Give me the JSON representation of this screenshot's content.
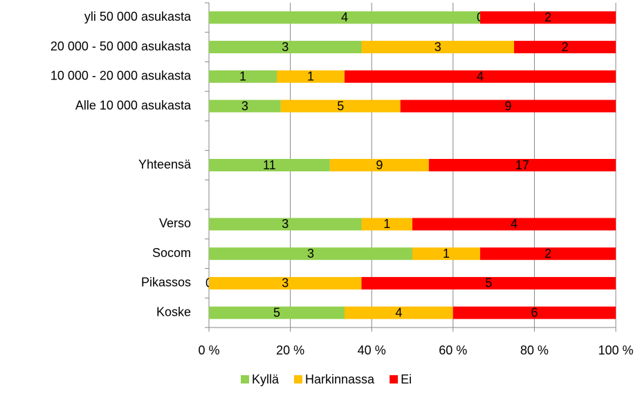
{
  "chart_data": {
    "type": "bar",
    "orientation": "horizontal",
    "stacked": "percent",
    "categories": [
      "yli 50 000 asukasta",
      "20 000 - 50 000 asukasta",
      "10 000 - 20 000 asukasta",
      "Alle 10 000 asukasta",
      null,
      "Yhteensä",
      null,
      "Verso",
      "Socom",
      "Pikassos",
      "Koske"
    ],
    "series": [
      {
        "name": "Kyllä",
        "color": "#92d050",
        "values": [
          4,
          3,
          1,
          3,
          null,
          11,
          null,
          3,
          3,
          0,
          5
        ]
      },
      {
        "name": "Harkinnassa",
        "color": "#ffc000",
        "values": [
          0,
          3,
          1,
          5,
          null,
          9,
          null,
          1,
          1,
          3,
          4
        ]
      },
      {
        "name": "Ei",
        "color": "#ff0000",
        "values": [
          2,
          2,
          4,
          9,
          null,
          17,
          null,
          4,
          2,
          5,
          6
        ]
      }
    ],
    "xlim": [
      0,
      100
    ],
    "xticks": [
      {
        "value": 0,
        "label": "0 %"
      },
      {
        "value": 20,
        "label": "20 %"
      },
      {
        "value": 40,
        "label": "40 %"
      },
      {
        "value": 60,
        "label": "60 %"
      },
      {
        "value": 80,
        "label": "80 %"
      },
      {
        "value": 100,
        "label": "100 %"
      }
    ],
    "grid": true,
    "legend": "bottom"
  }
}
